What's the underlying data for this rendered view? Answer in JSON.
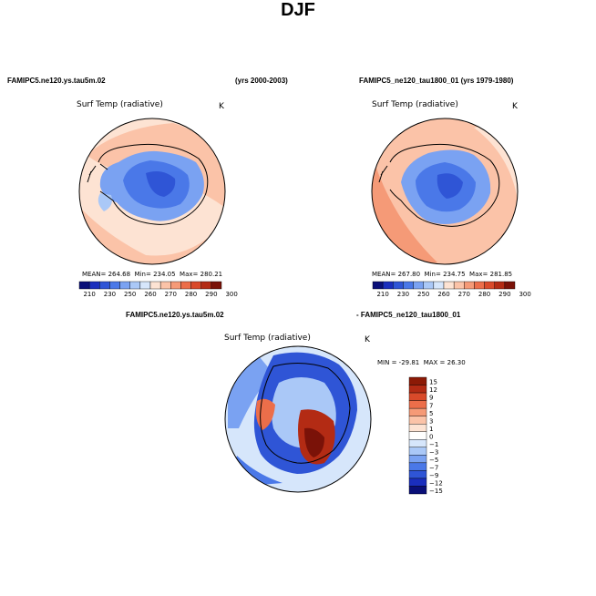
{
  "title": "DJF",
  "panels": {
    "left": {
      "case": "FAMIPC5.ne120.ys.tau5m.02",
      "years": "(yrs 2000-2003)",
      "variable": "Surf Temp (radiative)",
      "units": "K",
      "mean_label": "MEAN=",
      "mean": "264.68",
      "min_label": "Min=",
      "min": "234.05",
      "max_label": "Max=",
      "max": "280.21"
    },
    "right": {
      "case": "FAMIPC5_ne120_tau1800_01 (yrs 1979-1980)",
      "variable": "Surf Temp (radiative)",
      "units": "K",
      "mean_label": "MEAN=",
      "mean": "267.80",
      "min_label": "Min=",
      "min": "234.75",
      "max_label": "Max=",
      "max": "281.85"
    },
    "diff": {
      "case_a": "FAMIPC5.ne120.ys.tau5m.02",
      "case_b": "- FAMIPC5_ne120_tau1800_01",
      "variable": "Surf Temp (radiative)",
      "units": "K",
      "min_label": "MIN =",
      "min": "-29.81",
      "max_label": "MAX =",
      "max": "26.30"
    }
  },
  "chart_data": [
    {
      "type": "heatmap",
      "title": "Surf Temp (radiative)",
      "projection": "south-polar stereographic",
      "colorbar_levels": [
        210,
        230,
        250,
        260,
        270,
        280,
        290,
        300
      ],
      "colorbar_labels": [
        "210",
        "230",
        "250",
        "260",
        "270",
        "280",
        "290",
        "300"
      ],
      "colorbar_colors": [
        "#0a0f78",
        "#1a2ebd",
        "#2f55d6",
        "#4a78e8",
        "#7aa2f2",
        "#aac8f7",
        "#d6e6fb",
        "#fde3d3",
        "#fbc3a8",
        "#f59a77",
        "#ec6e4a",
        "#d94a2a",
        "#b32b14",
        "#7a1208"
      ],
      "colorbar_position": "bottom",
      "stats": {
        "mean": 264.68,
        "min": 234.05,
        "max": 280.21
      }
    },
    {
      "type": "heatmap",
      "title": "Surf Temp (radiative)",
      "projection": "south-polar stereographic",
      "colorbar_levels": [
        210,
        230,
        250,
        260,
        270,
        280,
        290,
        300
      ],
      "colorbar_labels": [
        "210",
        "230",
        "250",
        "260",
        "270",
        "280",
        "290",
        "300"
      ],
      "colorbar_position": "bottom",
      "stats": {
        "mean": 267.8,
        "min": 234.75,
        "max": 281.85
      }
    },
    {
      "type": "heatmap",
      "title": "Surf Temp (radiative)",
      "projection": "south-polar stereographic",
      "colorbar_levels": [
        15,
        12,
        9,
        7,
        5,
        3,
        1,
        0,
        -1,
        -3,
        -5,
        -7,
        -9,
        -12,
        -15
      ],
      "colorbar_labels": [
        "15",
        "12",
        "9",
        "7",
        "5",
        "3",
        "1",
        "0",
        "−1",
        "−3",
        "−5",
        "−7",
        "−9",
        "−12",
        "−15"
      ],
      "colorbar_colors": [
        "#8c1a06",
        "#b32b14",
        "#d94a2a",
        "#ec6e4a",
        "#f59a77",
        "#fbc3a8",
        "#fde3d3",
        "#ffffff",
        "#d6e6fb",
        "#aac8f7",
        "#7aa2f2",
        "#4a78e8",
        "#2f55d6",
        "#1a2ebd",
        "#0a0f78"
      ],
      "colorbar_position": "right",
      "stats": {
        "min": -29.81,
        "max": 26.3
      }
    }
  ],
  "colors": {
    "ocean_warm": "#fbc3a8",
    "ocean_warmer": "#f59a77",
    "ice_blue": "#4a78e8",
    "ice_deep": "#2f55d6",
    "diff_ocean": "#d6e6fb",
    "diff_hot": "#b32b14"
  }
}
